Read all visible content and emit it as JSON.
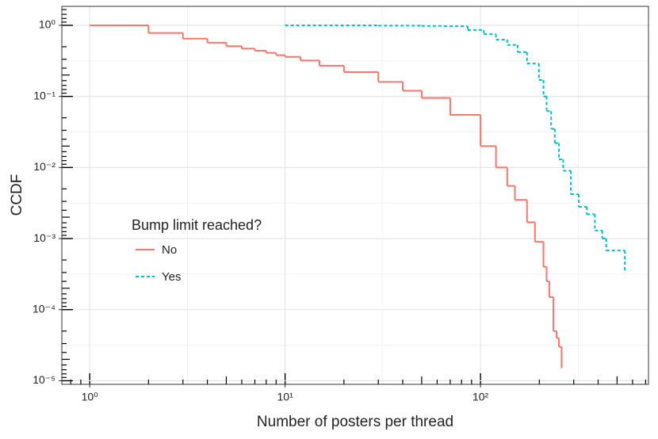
{
  "chart_data": {
    "type": "line",
    "x_label": "Number of posters per thread",
    "y_label": "CCDF",
    "legend_title": "Bump limit reached?",
    "log_x": true,
    "log_y": true,
    "grid": true,
    "xlim": [
      0.72,
      724
    ],
    "ylim": [
      8.9e-06,
      1.85
    ],
    "xticks": [
      {
        "value": 1,
        "label": "10⁰"
      },
      {
        "value": 10,
        "label": "10¹"
      },
      {
        "value": 100,
        "label": "10²"
      }
    ],
    "yticks": [
      {
        "value": 1,
        "label": "10⁰"
      },
      {
        "value": 0.1,
        "label": "10⁻¹"
      },
      {
        "value": 0.01,
        "label": "10⁻²"
      },
      {
        "value": 0.001,
        "label": "10⁻³"
      },
      {
        "value": 0.0001,
        "label": "10⁻⁴"
      },
      {
        "value": 1e-05,
        "label": "10⁻⁵"
      }
    ],
    "series": [
      {
        "name": "No",
        "color": "#F8766D",
        "linetype": "solid",
        "x": [
          1,
          2,
          3,
          4,
          5,
          6,
          7,
          8,
          9,
          10,
          12,
          15,
          20,
          30,
          40,
          50,
          70,
          100,
          120,
          137,
          150,
          173,
          190,
          210,
          218,
          225,
          236,
          245,
          252,
          260
        ],
        "values": [
          1,
          0.78,
          0.65,
          0.57,
          0.51,
          0.47,
          0.44,
          0.41,
          0.38,
          0.36,
          0.32,
          0.27,
          0.22,
          0.16,
          0.12,
          0.095,
          0.055,
          0.02,
          0.01,
          0.0055,
          0.0035,
          0.0017,
          0.0009,
          0.0004,
          0.00025,
          0.00015,
          5e-05,
          4e-05,
          3e-05,
          1.5e-05
        ]
      },
      {
        "name": "Yes",
        "color": "#00BFC4",
        "linetype": "dashed",
        "x": [
          10,
          30,
          50,
          65,
          86,
          104,
          120,
          137,
          155,
          173,
          199,
          210,
          218,
          230,
          240,
          252,
          265,
          290,
          318,
          350,
          385,
          420,
          440,
          548
        ],
        "values": [
          1,
          0.99,
          0.98,
          0.97,
          0.86,
          0.75,
          0.63,
          0.53,
          0.42,
          0.29,
          0.17,
          0.1,
          0.062,
          0.035,
          0.022,
          0.013,
          0.009,
          0.0042,
          0.0028,
          0.0022,
          0.0013,
          0.001,
          0.00068,
          0.00033
        ]
      }
    ]
  }
}
